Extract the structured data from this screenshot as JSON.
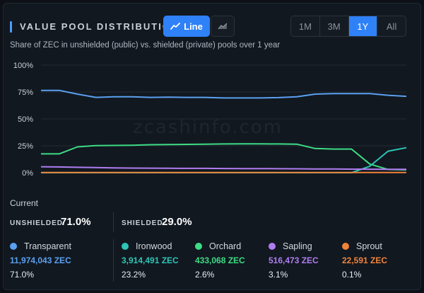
{
  "header": {
    "title": "VALUE POOL DISTRIBUTION",
    "subtitle": "Share of ZEC in unshielded (public) vs. shielded (private) pools over 1 year",
    "view_toggle": {
      "line_label": "Line",
      "area_icon": "area-chart-icon"
    },
    "ranges": [
      "1M",
      "3M",
      "1Y",
      "All"
    ],
    "active_range": "1Y"
  },
  "watermark": "zcashinfo.com",
  "chart_data": {
    "type": "line",
    "y_ticks": [
      "100%",
      "75%",
      "50%",
      "25%",
      "0%"
    ],
    "ylim": [
      0,
      100
    ],
    "x": [
      0,
      5,
      10,
      15,
      20,
      25,
      30,
      35,
      40,
      45,
      50,
      55,
      60,
      65,
      70,
      75,
      80,
      85,
      90,
      95,
      100
    ],
    "series": [
      {
        "name": "Transparent",
        "color": "#5aa0f0",
        "values": [
          76.5,
          76.5,
          73,
          70,
          70.5,
          70.5,
          70,
          70.2,
          70,
          70,
          69.5,
          69.5,
          69.5,
          69.8,
          70.5,
          73,
          73.5,
          73.5,
          73.5,
          72,
          71
        ]
      },
      {
        "name": "Orchard",
        "color": "#3ddc84",
        "values": [
          17.5,
          17.5,
          24,
          25.2,
          25.3,
          25.5,
          26,
          26.2,
          26.3,
          26.5,
          26.7,
          26.8,
          26.8,
          26.7,
          26.5,
          22.5,
          22,
          22,
          8,
          3,
          2.6
        ]
      },
      {
        "name": "Ironwood",
        "color": "#2ec4b6",
        "values": [
          0,
          0,
          0,
          0,
          0,
          0,
          0,
          0,
          0,
          0,
          0,
          0,
          0,
          0,
          0,
          0,
          0,
          0,
          6,
          20,
          23.2
        ]
      },
      {
        "name": "Sapling",
        "color": "#b07cf0",
        "values": [
          5.5,
          5.3,
          5,
          4.8,
          4.5,
          4.3,
          4.2,
          4.1,
          4,
          4,
          3.9,
          3.8,
          3.8,
          3.7,
          3.6,
          3.5,
          3.4,
          3.3,
          3.2,
          3.1,
          3.1
        ]
      },
      {
        "name": "Sprout",
        "color": "#f0833a",
        "values": [
          0.1,
          0.1,
          0.1,
          0.1,
          0.1,
          0.1,
          0.1,
          0.1,
          0.1,
          0.1,
          0.1,
          0.1,
          0.1,
          0.1,
          0.1,
          0.1,
          0.1,
          0.1,
          0.1,
          0.1,
          0.1
        ]
      }
    ]
  },
  "current": {
    "label": "Current",
    "unshielded_label": "UNSHIELDED",
    "unshielded_value": "71.0%",
    "shielded_label": "SHIELDED",
    "shielded_value": "29.0%"
  },
  "pools": [
    {
      "name": "Transparent",
      "amount": "11,974,043 ZEC",
      "percent": "71.0%",
      "color": "#5aa0f0"
    },
    {
      "name": "Ironwood",
      "amount": "3,914,491 ZEC",
      "percent": "23.2%",
      "color": "#2ec4b6"
    },
    {
      "name": "Orchard",
      "amount": "433,068 ZEC",
      "percent": "2.6%",
      "color": "#3ddc84"
    },
    {
      "name": "Sapling",
      "amount": "516,473 ZEC",
      "percent": "3.1%",
      "color": "#b07cf0"
    },
    {
      "name": "Sprout",
      "amount": "22,591 ZEC",
      "percent": "0.1%",
      "color": "#f0833a"
    }
  ]
}
